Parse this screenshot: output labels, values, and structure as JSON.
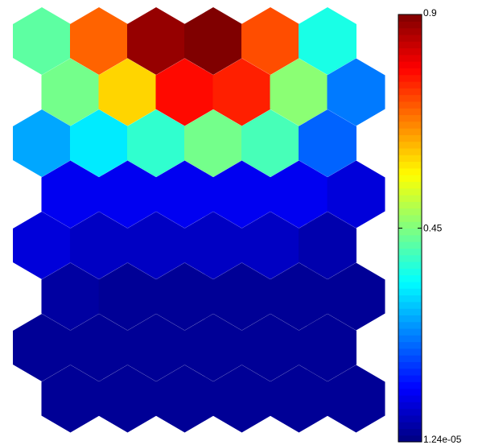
{
  "chart_data": {
    "type": "heatmap",
    "layout": "hexagonal",
    "rows": 8,
    "cols": 7,
    "colormap": "jet",
    "color_range": [
      1.24e-05,
      0.9
    ],
    "colorbar": {
      "ticks": [
        {
          "value": 0.9,
          "label": "0.9"
        },
        {
          "value": 0.45,
          "label": "0.45"
        },
        {
          "value": 1.24e-05,
          "label": "1.24e-05"
        }
      ],
      "levels": 64
    },
    "title": "",
    "xlabel": "",
    "ylabel": "",
    "values": [
      [
        0.42,
        0.7,
        0.88,
        0.9,
        0.72,
        0.36,
        null
      ],
      [
        null,
        0.44,
        0.6,
        0.78,
        0.76,
        0.46,
        0.22
      ],
      [
        0.26,
        0.32,
        0.38,
        0.44,
        0.4,
        0.2,
        null
      ],
      [
        null,
        0.1,
        0.1,
        0.1,
        0.1,
        0.1,
        0.08
      ],
      [
        0.08,
        0.06,
        0.06,
        0.06,
        0.06,
        0.04,
        null
      ],
      [
        null,
        0.03,
        0.02,
        0.02,
        0.02,
        0.02,
        0.02
      ],
      [
        0.02,
        0.02,
        0.02,
        0.02,
        0.02,
        0.02,
        null
      ],
      [
        null,
        0.02,
        0.02,
        0.02,
        0.02,
        0.02,
        0.02
      ]
    ]
  }
}
